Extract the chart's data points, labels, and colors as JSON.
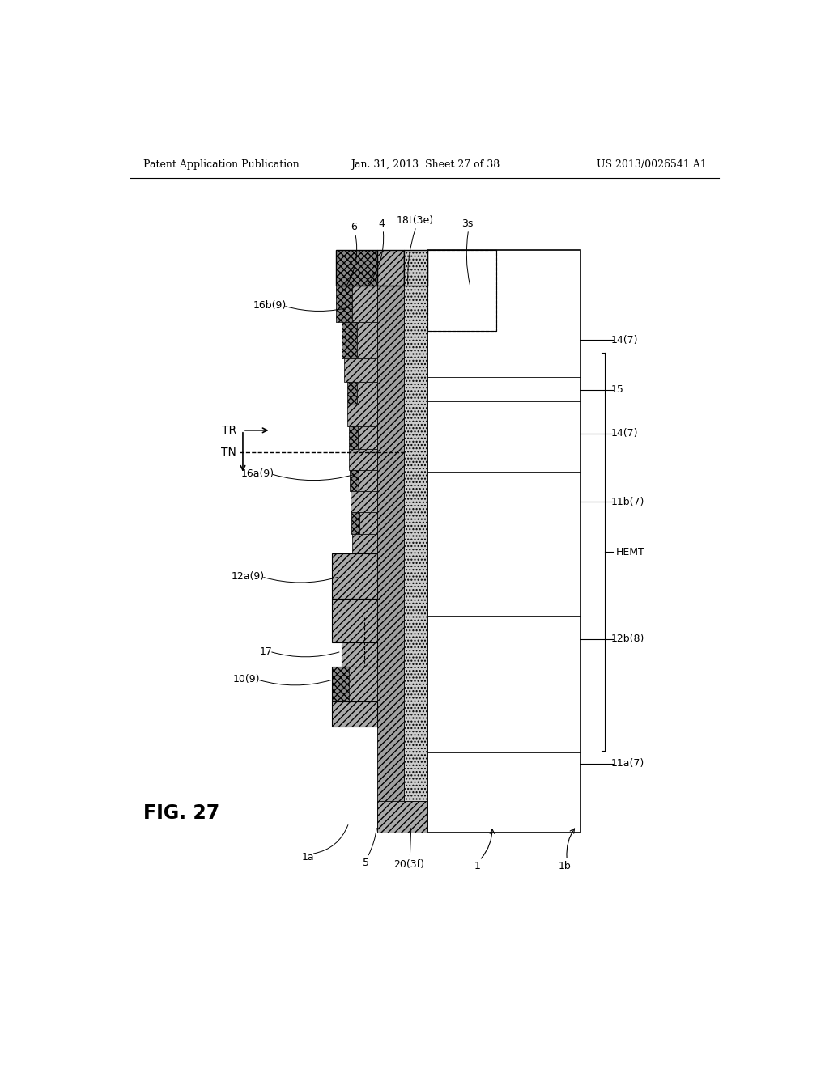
{
  "bg": "#ffffff",
  "header_left": "Patent Application Publication",
  "header_center": "Jan. 31, 2013  Sheet 27 of 38",
  "header_right": "US 2013/0026541 A1",
  "fig_label": "FIG. 27",
  "colors": {
    "diag_dark": "#888888",
    "diag_light": "#bbbbbb",
    "cross_hatch": "#aaaaaa",
    "stipple": "#cccccc",
    "white": "#ffffff",
    "substrate": "#ffffff",
    "light_gray": "#e0e0e0"
  }
}
